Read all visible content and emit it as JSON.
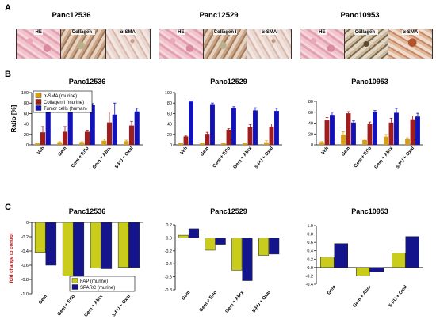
{
  "panels": {
    "a": "A",
    "b": "B",
    "c": "C"
  },
  "tissue_titles": [
    "Panc12536",
    "Panc12529",
    "Panc10953"
  ],
  "stain_labels": [
    "HE",
    "Collagen I",
    "α-SMA"
  ],
  "chart_data": [
    {
      "id": "B1",
      "type": "bar",
      "title": "Panc12536",
      "ylabel": "Ratio [%]",
      "ylim": [
        0,
        100
      ],
      "yticks": [
        0,
        20,
        40,
        60,
        80,
        100
      ],
      "categories": [
        "Veh",
        "Gem",
        "Gem + Erlo",
        "Gem + Abrx",
        "5-FU + Oxal"
      ],
      "series": [
        {
          "name": "α-SMA (murine)",
          "color": "#d4a017",
          "values": [
            3,
            5,
            5,
            8,
            7
          ],
          "errors": [
            1,
            1,
            1,
            3,
            2
          ]
        },
        {
          "name": "Collagen I (murine)",
          "color": "#a01d1d",
          "values": [
            24,
            25,
            25,
            43,
            37
          ],
          "errors": [
            11,
            10,
            3,
            20,
            8
          ]
        },
        {
          "name": "Tumor cells (human)",
          "color": "#1212b8",
          "values": [
            76,
            76,
            76,
            58,
            64
          ],
          "errors": [
            8,
            11,
            3,
            22,
            6
          ]
        }
      ],
      "legend": "top-left"
    },
    {
      "id": "B2",
      "type": "bar",
      "title": "Panc12529",
      "ylim": [
        0,
        100
      ],
      "yticks": [
        0,
        20,
        40,
        60,
        80,
        100
      ],
      "categories": [
        "Veh",
        "Gem",
        "Gem + Erlo",
        "Gem + Abrx",
        "5-FU + Oxal"
      ],
      "series": [
        {
          "name": "α-SMA (murine)",
          "color": "#d4a017",
          "values": [
            3,
            3,
            3,
            3,
            5
          ],
          "errors": [
            0.5,
            1,
            1,
            1,
            3
          ]
        },
        {
          "name": "Collagen I (murine)",
          "color": "#a01d1d",
          "values": [
            16,
            21,
            29,
            34,
            35
          ],
          "errors": [
            1,
            3,
            2,
            5,
            5
          ]
        },
        {
          "name": "Tumor cells (human)",
          "color": "#1212b8",
          "values": [
            83,
            78,
            71,
            66,
            65
          ],
          "errors": [
            1,
            2,
            2,
            5,
            5
          ]
        }
      ]
    },
    {
      "id": "B3",
      "type": "bar",
      "title": "Panc10953",
      "ylim": [
        0,
        80
      ],
      "yticks": [
        0,
        20,
        40,
        60,
        80
      ],
      "categories": [
        "Veh",
        "Gem",
        "Gem + Erlo",
        "Gem + Abrx",
        "5-FU + Oxal"
      ],
      "series": [
        {
          "name": "α-SMA (murine)",
          "color": "#d4a017",
          "values": [
            5,
            19,
            9,
            15,
            11
          ],
          "errors": [
            1,
            5,
            2,
            4,
            2
          ]
        },
        {
          "name": "Collagen I (murine)",
          "color": "#a01d1d",
          "values": [
            45,
            58,
            39,
            41,
            47
          ],
          "errors": [
            5,
            3,
            3,
            8,
            6
          ]
        },
        {
          "name": "Tumor cells (human)",
          "color": "#1212b8",
          "values": [
            55,
            41,
            60,
            59,
            52
          ],
          "errors": [
            5,
            3,
            3,
            8,
            6
          ]
        }
      ]
    },
    {
      "id": "C1",
      "type": "bar",
      "title": "Panc12536",
      "ylabel": "fold change to control",
      "ylim": [
        -1.0,
        0
      ],
      "yticks": [
        0,
        -0.2,
        -0.4,
        -0.6,
        -0.8,
        -1.0
      ],
      "ytick_labels": [
        "0",
        "-0.2",
        "-0.4",
        "-0.6",
        "-0.8",
        "-1.0"
      ],
      "categories": [
        "Gem",
        "Gem + Erlo",
        "Gem + Abrx",
        "5-FU + Oxal"
      ],
      "series": [
        {
          "name": "FAP (murine)",
          "color": "#c9cc1a",
          "values": [
            -0.42,
            -0.75,
            -0.64,
            -0.63
          ]
        },
        {
          "name": "SPARC (murine)",
          "color": "#14148c",
          "values": [
            -0.6,
            -0.77,
            -0.65,
            -0.63
          ]
        }
      ],
      "legend": "bottom-right"
    },
    {
      "id": "C2",
      "type": "bar",
      "title": "Panc12529",
      "ylim": [
        -0.8,
        0.2
      ],
      "yticks": [
        0.2,
        0,
        -0.2,
        -0.4,
        -0.6,
        -0.8
      ],
      "ytick_labels": [
        "0.2",
        "0.0",
        "-0.2",
        "-0.4",
        "-0.6",
        "-0.8"
      ],
      "categories": [
        "Gem",
        "Gem + Erlo",
        "Gem + Abrx",
        "5-FU + Oxal"
      ],
      "series": [
        {
          "name": "FAP (murine)",
          "color": "#c9cc1a",
          "values": [
            0.04,
            -0.19,
            -0.5,
            -0.27
          ]
        },
        {
          "name": "SPARC (murine)",
          "color": "#14148c",
          "values": [
            0.14,
            -0.1,
            -0.66,
            -0.25
          ]
        }
      ]
    },
    {
      "id": "C3",
      "type": "bar",
      "title": "Panc10953",
      "ylim": [
        -0.4,
        1.0
      ],
      "yticks": [
        1.0,
        0.8,
        0.6,
        0.4,
        0.2,
        0,
        -0.2,
        -0.4
      ],
      "ytick_labels": [
        "1.0",
        "0.8",
        "0.6",
        "0.4",
        "0.2",
        "0.0",
        "-0.2",
        "-0.4"
      ],
      "categories": [
        "Gem",
        "Gem + Abrx",
        "5-FU + Oxal"
      ],
      "series": [
        {
          "name": "FAP (murine)",
          "color": "#c9cc1a",
          "values": [
            0.25,
            -0.2,
            0.35
          ]
        },
        {
          "name": "SPARC (murine)",
          "color": "#14148c",
          "values": [
            0.57,
            -0.11,
            0.74
          ]
        }
      ]
    }
  ]
}
